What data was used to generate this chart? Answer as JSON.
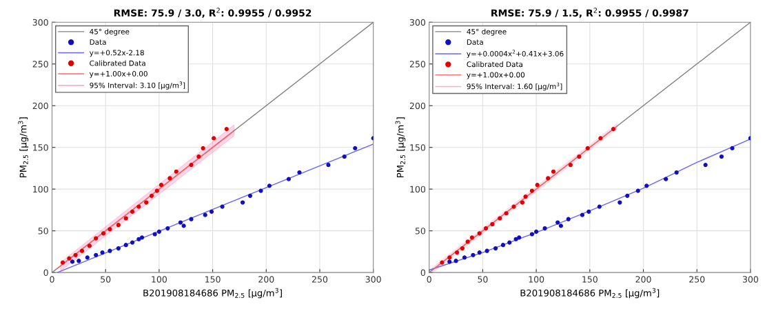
{
  "chart_data": [
    {
      "type": "scatter",
      "title": "RMSE: 75.9 / 3.0, R$^{2}$: 0.9955 / 0.9952",
      "xlabel": "B201908184686 PM$_{2.5}$ [µg/m$^{3}$]",
      "ylabel": "PM$_{2.5}$ [µg/m$^{3}$]",
      "xlim": [
        0,
        300
      ],
      "ylim": [
        0,
        300
      ],
      "xticks": [
        0,
        50,
        100,
        150,
        200,
        250,
        300
      ],
      "yticks": [
        0,
        50,
        100,
        150,
        200,
        250,
        300
      ],
      "grid": true,
      "legend": "top left",
      "series": [
        {
          "name": "45° degree",
          "type": "line",
          "color": "#808080",
          "x": [
            0,
            300
          ],
          "values": [
            0,
            300
          ]
        },
        {
          "name": "Data",
          "type": "scatter",
          "marker": "circle",
          "color": "#1010c0",
          "x": [
            19,
            25,
            33,
            41,
            47,
            54,
            62,
            69,
            75,
            81,
            84,
            96,
            100,
            108,
            120,
            123,
            130,
            143,
            149,
            159,
            178,
            185,
            195,
            203,
            221,
            231,
            258,
            273,
            283,
            300
          ],
          "values": [
            13,
            14,
            18,
            21,
            24,
            26,
            29,
            33,
            36,
            40,
            42,
            46,
            49,
            53,
            60,
            56,
            64,
            69,
            73,
            79,
            84,
            92,
            98,
            104,
            112,
            120,
            129,
            139,
            149,
            161
          ]
        },
        {
          "name": "y=+0.52x-2.18",
          "type": "line",
          "color": "#6666ff",
          "x": [
            5,
            300
          ],
          "values": [
            0,
            154
          ]
        },
        {
          "name": "Calibrated Data",
          "type": "scatter",
          "marker": "circle",
          "color": "#e00000",
          "x": [
            10,
            16,
            22,
            28,
            35,
            41,
            48,
            54,
            62,
            69,
            75,
            81,
            88,
            93,
            98,
            102,
            110,
            116,
            130,
            137,
            141,
            151,
            163
          ],
          "values": [
            12,
            17,
            21,
            26,
            32,
            41,
            47,
            52,
            57,
            65,
            73,
            79,
            84,
            92,
            98,
            105,
            113,
            121,
            129,
            139,
            149,
            161,
            172
          ]
        },
        {
          "name": "y=+1.00x+0.00",
          "type": "line",
          "color": "#ff6666",
          "x": [
            5,
            170
          ],
          "values": [
            5,
            170
          ]
        },
        {
          "name": "95% Interval: 3.10 [µg/m$^{3}$]",
          "type": "line",
          "color": "#ff88bb",
          "x": [
            8,
            170
          ],
          "values": [
            8,
            170
          ],
          "lower": [
            2,
            164
          ],
          "upper": [
            12,
            177
          ]
        }
      ]
    },
    {
      "type": "scatter",
      "title": "RMSE: 75.9 / 1.5, R$^{2}$: 0.9955 / 0.9987",
      "xlabel": "B201908184686 PM$_{2.5}$ [µg/m$^{3}$]",
      "ylabel": "PM$_{2.5}$ [µg/m$^{3}$]",
      "xlim": [
        0,
        300
      ],
      "ylim": [
        0,
        300
      ],
      "xticks": [
        0,
        50,
        100,
        150,
        200,
        250,
        300
      ],
      "yticks": [
        0,
        50,
        100,
        150,
        200,
        250,
        300
      ],
      "grid": true,
      "legend": "top left",
      "series": [
        {
          "name": "45° degree",
          "type": "line",
          "color": "#808080",
          "x": [
            0,
            300
          ],
          "values": [
            0,
            300
          ]
        },
        {
          "name": "Data",
          "type": "scatter",
          "marker": "circle",
          "color": "#1010c0",
          "x": [
            19,
            25,
            33,
            41,
            47,
            54,
            62,
            69,
            75,
            81,
            84,
            96,
            100,
            108,
            120,
            123,
            130,
            143,
            149,
            159,
            178,
            185,
            195,
            203,
            221,
            231,
            258,
            273,
            283,
            300
          ],
          "values": [
            13,
            14,
            18,
            21,
            24,
            26,
            29,
            33,
            36,
            40,
            42,
            46,
            49,
            53,
            60,
            56,
            64,
            69,
            73,
            79,
            84,
            92,
            98,
            104,
            112,
            120,
            129,
            139,
            149,
            161
          ]
        },
        {
          "name": "y=+0.0004x$^{2}$+0.41x+3.06",
          "type": "line",
          "color": "#6666ff",
          "x": [
            0,
            50,
            100,
            150,
            200,
            250,
            300
          ],
          "values": [
            3,
            24,
            48,
            74,
            101,
            132,
            160
          ]
        },
        {
          "name": "Calibrated Data",
          "type": "scatter",
          "marker": "circle",
          "color": "#e00000",
          "x": [
            12,
            19,
            26,
            31,
            36,
            40,
            47,
            53,
            59,
            66,
            72,
            79,
            87,
            90,
            96,
            101,
            111,
            116,
            132,
            140,
            148,
            160,
            172
          ],
          "values": [
            12,
            18,
            24,
            29,
            37,
            42,
            47,
            53,
            58,
            65,
            71,
            79,
            84,
            91,
            98,
            105,
            113,
            121,
            129,
            139,
            149,
            161,
            172
          ]
        },
        {
          "name": "y=+1.00x+0.00",
          "type": "line",
          "color": "#ff6666",
          "x": [
            3,
            175
          ],
          "values": [
            3,
            175
          ]
        },
        {
          "name": "95% Interval: 1.60 [µg/m$^{3}$]",
          "type": "line",
          "color": "#ffaac8",
          "x": [
            3,
            175
          ],
          "values": [
            3,
            175
          ],
          "lower": [
            0,
            172
          ],
          "upper": [
            6,
            178
          ]
        }
      ]
    }
  ]
}
